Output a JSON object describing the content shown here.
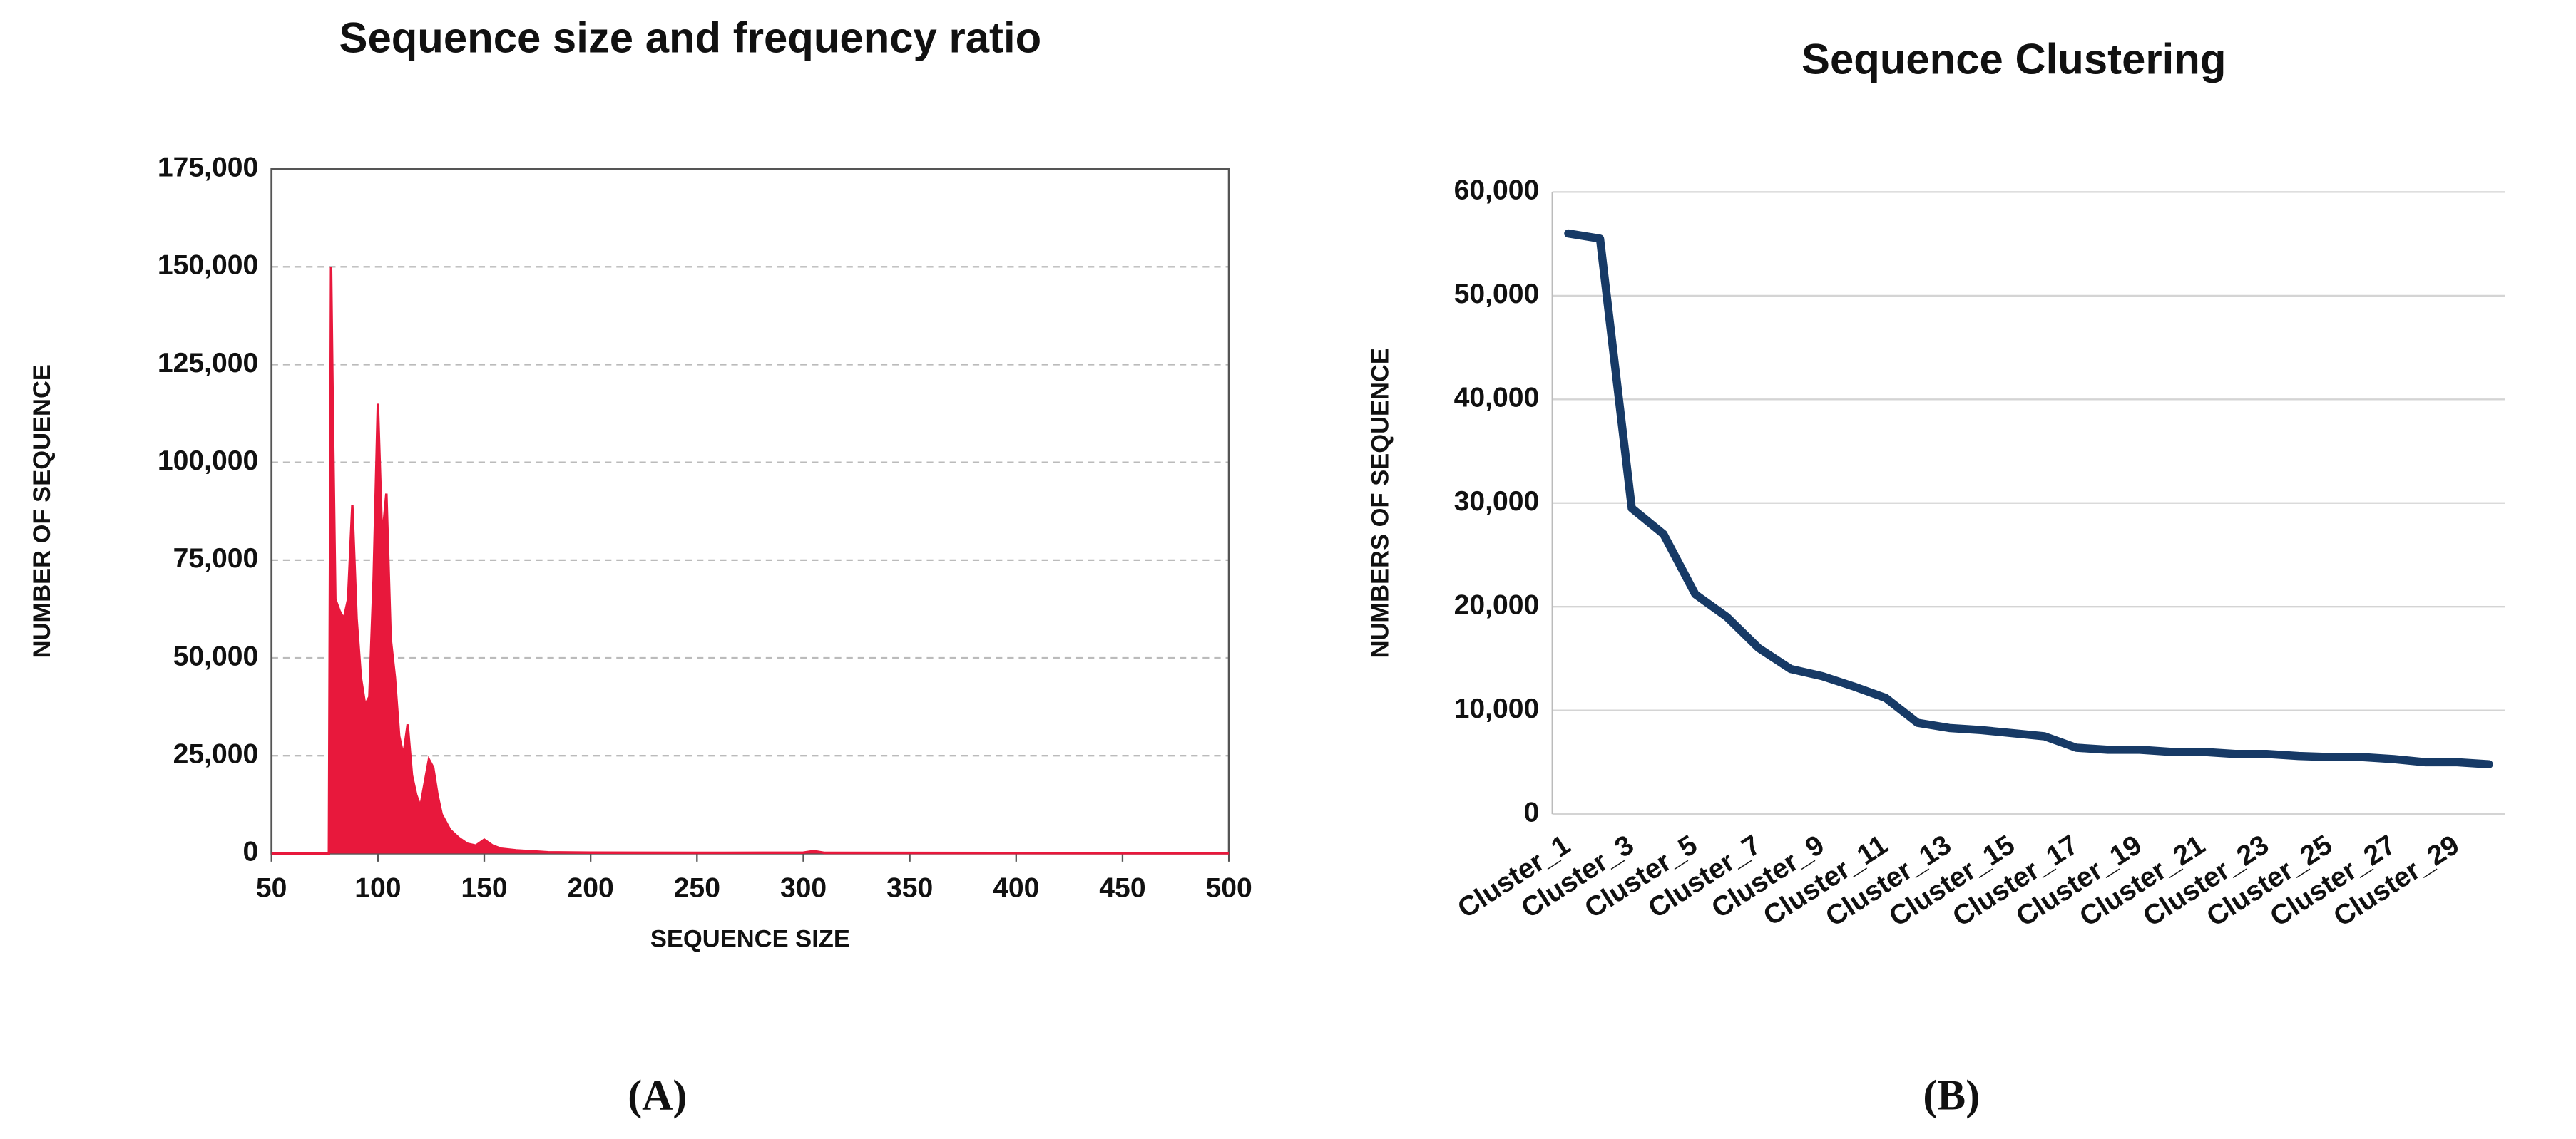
{
  "chart_data": [
    {
      "type": "area",
      "title": "Sequence size and frequency ratio",
      "caption": "(A)",
      "x_label": "SEQUENCE SIZE",
      "y_label": "NUMBER  OF SEQUENCE",
      "x": [
        50,
        77,
        78,
        79,
        80,
        82,
        84,
        86,
        88,
        90,
        92,
        94,
        96,
        98,
        100,
        102,
        104,
        106,
        108,
        110,
        112,
        114,
        116,
        118,
        120,
        122,
        124,
        126,
        128,
        130,
        134,
        138,
        142,
        146,
        150,
        154,
        158,
        165,
        180,
        200,
        250,
        300,
        305,
        310,
        400,
        500
      ],
      "values": [
        0,
        0,
        150000,
        105000,
        65000,
        62000,
        60000,
        65000,
        89000,
        60000,
        45000,
        38000,
        40000,
        70000,
        115000,
        80000,
        92000,
        55000,
        45000,
        30000,
        25000,
        33000,
        20000,
        15000,
        12000,
        18000,
        24000,
        22000,
        15000,
        10000,
        6000,
        4000,
        2500,
        2000,
        3500,
        2000,
        1200,
        800,
        300,
        200,
        150,
        200,
        600,
        150,
        100,
        50
      ],
      "color": "#e8183c",
      "xlim": [
        50,
        500
      ],
      "xticks": [
        50,
        100,
        150,
        200,
        250,
        300,
        350,
        400,
        450,
        500
      ],
      "ylim": [
        0,
        175000
      ],
      "yticks": [
        0,
        {
          "value": 25000,
          "label": "25,000"
        },
        {
          "value": 50000,
          "label": "50,000"
        },
        {
          "value": 75000,
          "label": "75,000"
        },
        {
          "value": 100000,
          "label": "100,000"
        },
        {
          "value": 125000,
          "label": "125,000"
        },
        {
          "value": 150000,
          "label": "150,000"
        },
        {
          "value": 175000,
          "label": "175,000"
        }
      ],
      "grid": true
    },
    {
      "type": "line",
      "title": "Sequence Clustering",
      "caption": "(B)",
      "y_label": "NUMBERS OF SEQUENCE",
      "categories": [
        "Cluster_1",
        null,
        "Cluster_3",
        null,
        "Cluster_5",
        null,
        "Cluster_7",
        null,
        "Cluster_9",
        null,
        "Cluster_11",
        null,
        "Cluster_13",
        null,
        "Cluster_15",
        null,
        "Cluster_17",
        null,
        "Cluster_19",
        null,
        "Cluster_21",
        null,
        "Cluster_23",
        null,
        "Cluster_25",
        null,
        "Cluster_27",
        null,
        "Cluster_29",
        null
      ],
      "values": [
        56000,
        55500,
        29500,
        27000,
        21200,
        19000,
        16000,
        14000,
        13300,
        12300,
        11200,
        8800,
        8300,
        8100,
        7800,
        7500,
        6400,
        6200,
        6200,
        6000,
        6000,
        5800,
        5800,
        5600,
        5500,
        5500,
        5300,
        5000,
        5000,
        4800
      ],
      "color": "#173a66",
      "ylim": [
        0,
        60000
      ],
      "yticks": [
        0,
        {
          "value": 10000,
          "label": "10,000"
        },
        {
          "value": 20000,
          "label": "20,000"
        },
        {
          "value": 30000,
          "label": "30,000"
        },
        {
          "value": 40000,
          "label": "40,000"
        },
        {
          "value": 50000,
          "label": "50,000"
        },
        {
          "value": 60000,
          "label": "60,000"
        }
      ],
      "grid": true
    }
  ]
}
